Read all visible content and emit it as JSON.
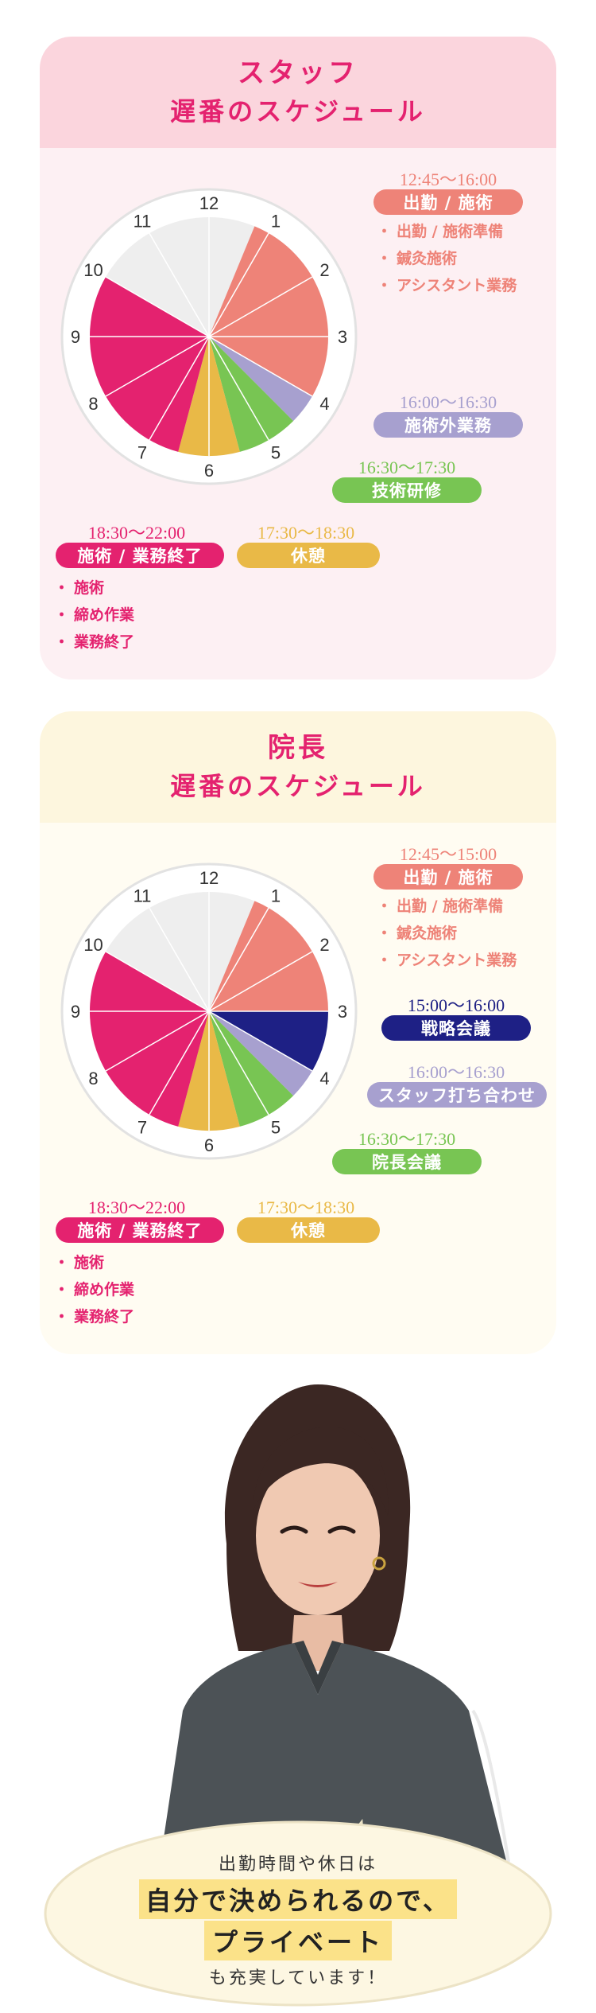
{
  "colors": {
    "pink": "#e4226f",
    "salmon": "#ee8378",
    "lavender": "#a7a0cf",
    "green": "#78c553",
    "mustard": "#e9b947",
    "navy": "#1e2085",
    "free": "#eeeeee",
    "staff_header_bg": "#fbd5dd",
    "staff_body_bg": "#fdf0f3",
    "director_header_bg": "#fdf6de",
    "director_body_bg": "#fffcf2",
    "highlight": "#fbe289"
  },
  "clock_numbers": [
    "12",
    "1",
    "2",
    "3",
    "4",
    "5",
    "6",
    "7",
    "8",
    "9",
    "10",
    "11"
  ],
  "staff": {
    "title": "スタッフ",
    "subtitle": "遅番のスケジュール",
    "slots": [
      {
        "time": "12:45〜16:00",
        "label": "出勤 / 施術",
        "color": "#ee8378",
        "items": [
          "出勤 / 施術準備",
          "鍼灸施術",
          "アシスタント業務"
        ]
      },
      {
        "time": "16:00〜16:30",
        "label": "施術外業務",
        "color": "#a7a0cf",
        "items": []
      },
      {
        "time": "16:30〜17:30",
        "label": "技術研修",
        "color": "#78c553",
        "items": []
      },
      {
        "time": "17:30〜18:30",
        "label": "休憩",
        "color": "#e9b947",
        "items": []
      },
      {
        "time": "18:30〜22:00",
        "label": "施術 / 業務終了",
        "color": "#e4226f",
        "items": [
          "施術",
          "締め作業",
          "業務終了"
        ]
      }
    ],
    "segments": [
      {
        "start": 12.75,
        "end": 16.0,
        "color": "#ee8378"
      },
      {
        "start": 16.0,
        "end": 16.5,
        "color": "#a7a0cf"
      },
      {
        "start": 16.5,
        "end": 17.5,
        "color": "#78c553"
      },
      {
        "start": 17.5,
        "end": 18.5,
        "color": "#e9b947"
      },
      {
        "start": 18.5,
        "end": 22.0,
        "color": "#e4226f"
      }
    ]
  },
  "director": {
    "title": "院長",
    "subtitle": "遅番のスケジュール",
    "slots": [
      {
        "time": "12:45〜15:00",
        "label": "出勤 / 施術",
        "color": "#ee8378",
        "items": [
          "出勤 / 施術準備",
          "鍼灸施術",
          "アシスタント業務"
        ]
      },
      {
        "time": "15:00〜16:00",
        "label": "戦略会議",
        "color": "#1e2085",
        "items": []
      },
      {
        "time": "16:00〜16:30",
        "label": "スタッフ打ち合わせ",
        "color": "#a7a0cf",
        "items": []
      },
      {
        "time": "16:30〜17:30",
        "label": "院長会議",
        "color": "#78c553",
        "items": []
      },
      {
        "time": "17:30〜18:30",
        "label": "休憩",
        "color": "#e9b947",
        "items": []
      },
      {
        "time": "18:30〜22:00",
        "label": "施術 / 業務終了",
        "color": "#e4226f",
        "items": [
          "施術",
          "締め作業",
          "業務終了"
        ]
      }
    ],
    "segments": [
      {
        "start": 12.75,
        "end": 15.0,
        "color": "#ee8378"
      },
      {
        "start": 15.0,
        "end": 16.0,
        "color": "#1e2085"
      },
      {
        "start": 16.0,
        "end": 16.5,
        "color": "#a7a0cf"
      },
      {
        "start": 16.5,
        "end": 17.5,
        "color": "#78c553"
      },
      {
        "start": 17.5,
        "end": 18.5,
        "color": "#e9b947"
      },
      {
        "start": 18.5,
        "end": 22.0,
        "color": "#e4226f"
      }
    ]
  },
  "quote": {
    "line1": "出勤時間や休日は",
    "line2": "自分で決められるので、",
    "line3": "プライベート",
    "line4": "も充実しています！"
  }
}
